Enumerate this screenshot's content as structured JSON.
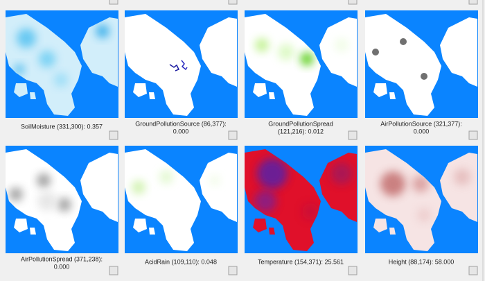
{
  "panels": [
    {
      "label_lines": [
        "SoilMoisture (331,300): 0.357"
      ]
    },
    {
      "label_lines": [
        "GroundPollutionSource (86,377):",
        "0.000"
      ]
    },
    {
      "label_lines": [
        "GroundPollutionSpread",
        "(121,216): 0.012"
      ]
    },
    {
      "label_lines": [
        "AirPollutionSource (321,377):",
        "0.000"
      ]
    },
    {
      "label_lines": [
        "AirPollutionSpread (371,238):",
        "0.000"
      ]
    },
    {
      "label_lines": [
        "AcidRain (109,110): 0.048"
      ]
    },
    {
      "label_lines": [
        "Temperature (154,371): 25.561"
      ]
    },
    {
      "label_lines": [
        "Height (88,174): 58.000"
      ]
    }
  ]
}
